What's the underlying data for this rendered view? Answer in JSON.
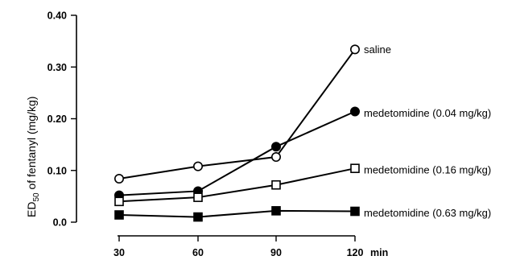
{
  "chart_data": {
    "type": "line",
    "ylabel_main": "ED",
    "ylabel_sub": "50",
    "ylabel_rest": " of fentanyl (mg/kg)",
    "xunit": "min",
    "ylim": [
      0,
      0.4
    ],
    "x": [
      30,
      60,
      90,
      120
    ],
    "xtick_labels": [
      "30",
      "60",
      "90",
      "120"
    ],
    "ytick_values": [
      0.0,
      0.1,
      0.2,
      0.3,
      0.4
    ],
    "ytick_labels": [
      "0.0",
      "0.10",
      "0.20",
      "0.30",
      "0.40"
    ],
    "grid": false,
    "series": [
      {
        "name": "saline",
        "marker": "open-circle",
        "values": [
          0.084,
          0.108,
          0.126,
          0.334
        ]
      },
      {
        "name": "medetomidine (0.04 mg/kg)",
        "marker": "filled-circle",
        "values": [
          0.052,
          0.06,
          0.146,
          0.214
        ]
      },
      {
        "name": "medetomidine (0.16 mg/kg)",
        "marker": "open-square",
        "values": [
          0.04,
          0.048,
          0.072,
          0.104
        ]
      },
      {
        "name": "medetomidine (0.63 mg/kg)",
        "marker": "filled-square",
        "values": [
          0.014,
          0.01,
          0.022,
          0.021
        ]
      }
    ]
  }
}
